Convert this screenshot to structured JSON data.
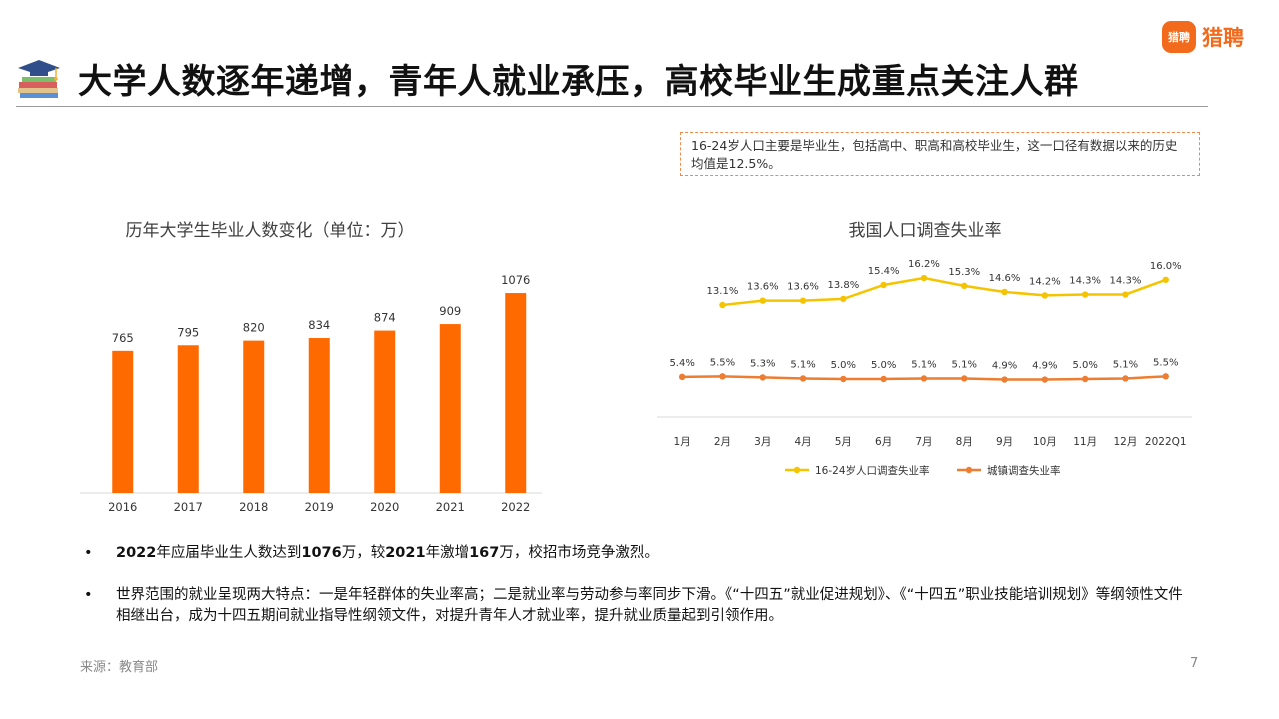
{
  "header": {
    "title": "大学人数逐年递增，青年人就业承压，高校毕业生成重点关注人群",
    "icon": "graduation-cap-books-icon"
  },
  "brand": {
    "badge": "猎聘",
    "name": "猎聘",
    "color": "#f26a1b"
  },
  "callout": {
    "text": "16-24岁人口主要是毕业生，包括高中、职高和高校毕业生，这一口径有数据以来的历史均值是12.5%。"
  },
  "bullets": [
    {
      "bold1": "2022",
      "t1": "年应届毕业生人数达到",
      "bold2": "1076",
      "t2": "万，较",
      "bold3": "2021",
      "t3": "年激增",
      "bold4": "167",
      "t4": "万，校招市场竞争激烈。"
    },
    {
      "text": "世界范围的就业呈现两大特点：一是年轻群体的失业率高；二是就业率与劳动参与率同步下滑。《“十四五”就业促进规划》、《“十四五”职业技能培训规划》等纲领性文件相继出台，成为十四五期间就业指导性纲领文件，对提升青年人才就业率，提升就业质量起到引领作用。"
    }
  ],
  "bullet_marker": "•",
  "footer": {
    "source": "来源：教育部",
    "page": "7"
  },
  "colors": {
    "accent": "#ff6a00",
    "youth_line": "#f5c400",
    "urban_line": "#ed7d31"
  },
  "chart_data": [
    {
      "type": "bar",
      "title": "历年大学生毕业人数变化（单位：万）",
      "categories": [
        "2016",
        "2017",
        "2018",
        "2019",
        "2020",
        "2021",
        "2022"
      ],
      "values": [
        765,
        795,
        820,
        834,
        874,
        909,
        1076
      ],
      "data_labels": [
        "765",
        "795",
        "820",
        "834",
        "874",
        "909",
        "1076"
      ],
      "ylim": [
        0,
        1200
      ],
      "grid": false,
      "color": "#ff6a00"
    },
    {
      "type": "line",
      "title": "我国人口调查失业率",
      "categories": [
        "1月",
        "2月",
        "3月",
        "4月",
        "5月",
        "6月",
        "7月",
        "8月",
        "9月",
        "10月",
        "11月",
        "12月",
        "2022Q1"
      ],
      "series": [
        {
          "name": "16-24岁人口调查失业率",
          "values": [
            null,
            13.1,
            13.6,
            13.6,
            13.8,
            15.4,
            16.2,
            15.3,
            14.6,
            14.2,
            14.3,
            14.3,
            16.0
          ],
          "labels": [
            "",
            "13.1%",
            "13.6%",
            "13.6%",
            "13.8%",
            "15.4%",
            "16.2%",
            "15.3%",
            "14.6%",
            "14.2%",
            "14.3%",
            "14.3%",
            "16.0%"
          ],
          "color": "#f5c400"
        },
        {
          "name": "城镇调查失业率",
          "values": [
            5.4,
            5.5,
            5.3,
            5.1,
            5.0,
            5.0,
            5.1,
            5.1,
            4.9,
            4.9,
            5.0,
            5.1,
            5.5
          ],
          "labels": [
            "5.4%",
            "5.5%",
            "5.3%",
            "5.1%",
            "5.0%",
            "5.0%",
            "5.1%",
            "5.1%",
            "4.9%",
            "4.9%",
            "5.0%",
            "5.1%",
            "5.5%"
          ],
          "color": "#ed7d31"
        }
      ],
      "legend": "bottom",
      "grid": false
    }
  ]
}
